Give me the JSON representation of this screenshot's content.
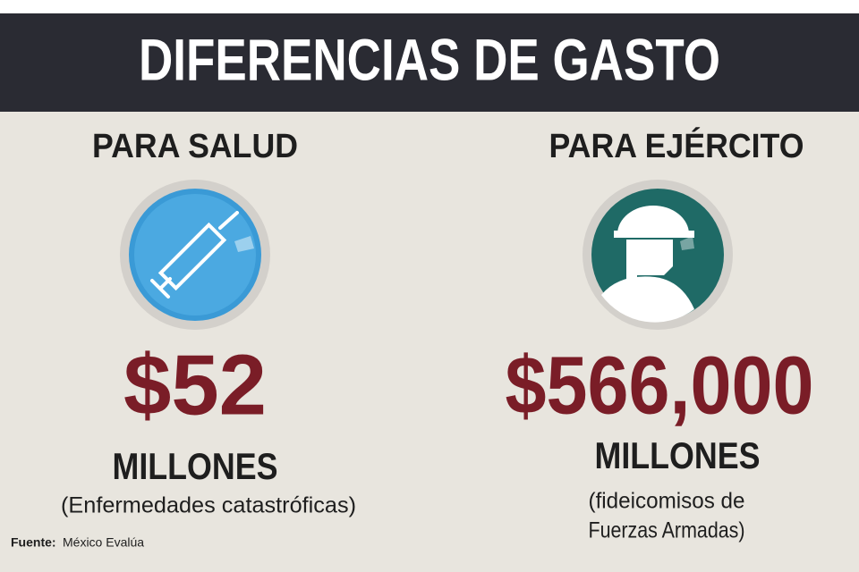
{
  "header": {
    "title": "DIFERENCIAS DE GASTO"
  },
  "columns": [
    {
      "heading": "PARA SALUD",
      "amount": "$52",
      "unit": "MILLONES",
      "note": [
        "(Enfermedades catastróficas)"
      ]
    },
    {
      "heading": "PARA EJÉRCITO",
      "amount": "$566,000",
      "unit": "MILLONES",
      "note": [
        "(fideicomisos de",
        "Fuerzas Armadas)"
      ]
    }
  ],
  "source": {
    "label": "Fuente:",
    "text": "México Evalúa"
  }
}
